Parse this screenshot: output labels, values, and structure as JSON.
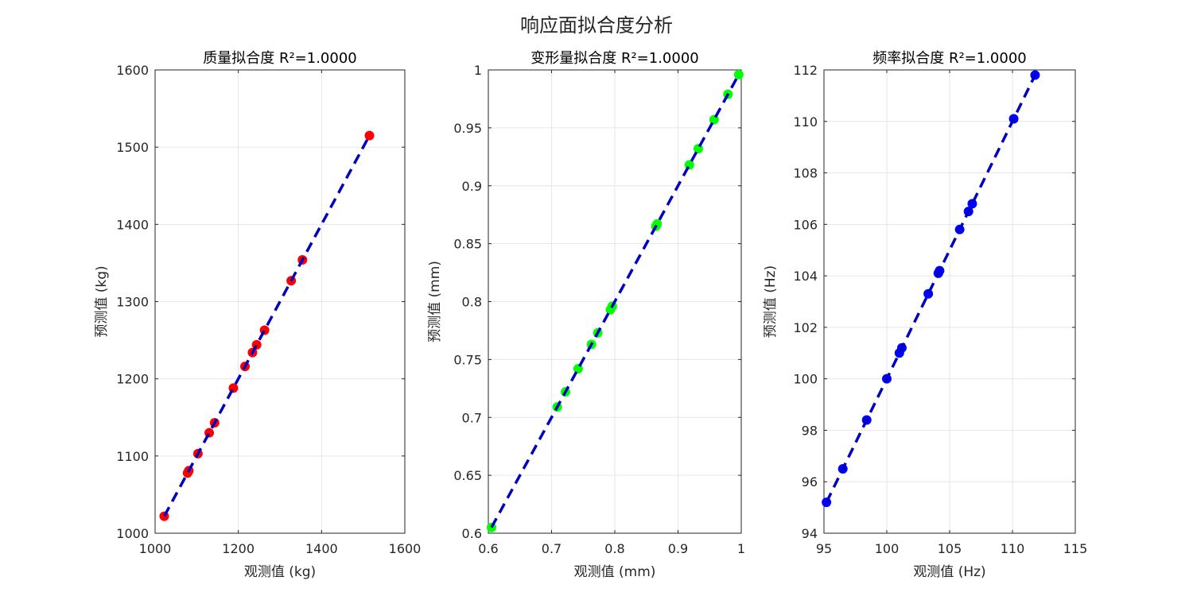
{
  "suptitle": "响应面拟合度分析",
  "chart_data": [
    {
      "type": "scatter",
      "title": "质量拟合度 R²=1.0000",
      "xlabel": "观测值 (kg)",
      "ylabel": "预测值 (kg)",
      "xlim": [
        1000,
        1600
      ],
      "ylim": [
        1000,
        1600
      ],
      "xticks": [
        1000,
        1200,
        1400,
        1600
      ],
      "yticks": [
        1000,
        1100,
        1200,
        1300,
        1400,
        1500,
        1600
      ],
      "xtick_labels": [
        "1000",
        "1200",
        "1400",
        "1600"
      ],
      "ytick_labels": [
        "1000",
        "1100",
        "1200",
        "1300",
        "1400",
        "1500",
        "1600"
      ],
      "grid": true,
      "point_color": "#ff0000",
      "line_color": "#0000bf",
      "x": [
        1022,
        1078,
        1081,
        1103,
        1130,
        1143,
        1188,
        1216,
        1234,
        1244,
        1263,
        1327,
        1354,
        1515
      ],
      "y": [
        1022,
        1078,
        1081,
        1103,
        1130,
        1143,
        1188,
        1216,
        1234,
        1244,
        1263,
        1327,
        1354,
        1515
      ],
      "fit_line": {
        "x": [
          1022,
          1515
        ],
        "y": [
          1022,
          1515
        ]
      }
    },
    {
      "type": "scatter",
      "title": "变形量拟合度 R²=1.0000",
      "xlabel": "观测值 (mm)",
      "ylabel": "预测值 (mm)",
      "xlim": [
        0.6,
        1.0
      ],
      "ylim": [
        0.6,
        1.0
      ],
      "xticks": [
        0.6,
        0.7,
        0.8,
        0.9,
        1.0
      ],
      "yticks": [
        0.6,
        0.65,
        0.7,
        0.75,
        0.8,
        0.85,
        0.9,
        0.95,
        1.0
      ],
      "xtick_labels": [
        "0.6",
        "0.7",
        "0.8",
        "0.9",
        "1"
      ],
      "ytick_labels": [
        "0.6",
        "0.65",
        "0.7",
        "0.75",
        "0.8",
        "0.85",
        "0.9",
        "0.95",
        "1"
      ],
      "grid": true,
      "point_color": "#00ff00",
      "line_color": "#0000bf",
      "x": [
        0.605,
        0.709,
        0.722,
        0.742,
        0.763,
        0.773,
        0.793,
        0.796,
        0.865,
        0.867,
        0.918,
        0.932,
        0.957,
        0.979,
        0.996
      ],
      "y": [
        0.605,
        0.709,
        0.722,
        0.742,
        0.763,
        0.773,
        0.793,
        0.796,
        0.865,
        0.867,
        0.918,
        0.932,
        0.957,
        0.979,
        0.996
      ],
      "fit_line": {
        "x": [
          0.605,
          0.996
        ],
        "y": [
          0.605,
          0.996
        ]
      }
    },
    {
      "type": "scatter",
      "title": "频率拟合度 R²=1.0000",
      "xlabel": "观测值 (Hz)",
      "ylabel": "预测值 (Hz)",
      "xlim": [
        95,
        115
      ],
      "ylim": [
        94,
        112
      ],
      "xticks": [
        95,
        100,
        105,
        110,
        115
      ],
      "yticks": [
        94,
        96,
        98,
        100,
        102,
        104,
        106,
        108,
        110,
        112
      ],
      "xtick_labels": [
        "95",
        "100",
        "105",
        "110",
        "115"
      ],
      "ytick_labels": [
        "94",
        "96",
        "98",
        "100",
        "102",
        "104",
        "106",
        "108",
        "110",
        "112"
      ],
      "grid": true,
      "point_color": "#0000ff",
      "line_color": "#0000bf",
      "x": [
        95.2,
        96.5,
        98.4,
        100.0,
        101.0,
        101.2,
        103.3,
        104.1,
        104.2,
        105.8,
        106.5,
        106.8,
        110.1,
        111.8
      ],
      "y": [
        95.2,
        96.5,
        98.4,
        100.0,
        101.0,
        101.2,
        103.3,
        104.1,
        104.2,
        105.8,
        106.5,
        106.8,
        110.1,
        111.8
      ],
      "fit_line": {
        "x": [
          95.2,
          111.8
        ],
        "y": [
          95.2,
          111.8
        ]
      }
    }
  ]
}
